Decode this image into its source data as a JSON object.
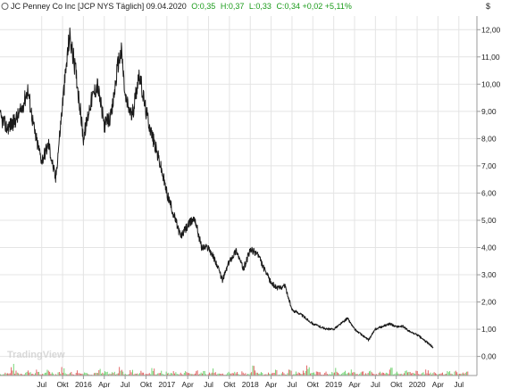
{
  "header": {
    "icon_name": "info-icon",
    "title": "JC Penney Co Inc [JCP NYS Täglich] 09.04.2020",
    "open": "O:0,35",
    "high": "H:0,37",
    "low": "L:0,33",
    "close_change": "C:0,34 +0,02 +5,11%",
    "currency": "$"
  },
  "watermark": {
    "text": "TradingView"
  },
  "colors": {
    "price_line": "#1a1a1a",
    "volume_up": "#6fd26f",
    "volume_down": "#e06060",
    "header_green": "#1a9b1a",
    "grid": "#e4e4e4",
    "axis": "#9a9a9a"
  },
  "chart_data": {
    "type": "line",
    "title": "JC Penney Co Inc [JCP NYS Täglich] 09.04.2020",
    "ylabel": "$",
    "ylim": [
      -0.7,
      12.5
    ],
    "y_ticks": [
      "12,00",
      "11,00",
      "10,00",
      "9,00",
      "8,00",
      "7,00",
      "6,00",
      "5,00",
      "4,00",
      "3,00",
      "2,00",
      "1,00",
      "0,00"
    ],
    "x_ticks": [
      "Jul",
      "Okt",
      "2016",
      "Apr",
      "Jul",
      "Okt",
      "2017",
      "Apr",
      "Jul",
      "Okt",
      "2018",
      "Apr",
      "Jul",
      "Okt",
      "2019",
      "Apr",
      "Jul",
      "Okt",
      "2020",
      "Apr",
      "Jul"
    ],
    "x_tick_months": [
      6,
      9,
      12,
      15,
      18,
      21,
      24,
      27,
      30,
      33,
      36,
      39,
      42,
      45,
      48,
      51,
      54,
      57,
      60,
      63,
      66
    ],
    "grid": true,
    "series": [
      {
        "name": "JCP",
        "x_month": [
          0,
          1,
          2,
          3,
          4,
          5,
          6,
          7,
          8,
          9,
          10,
          11,
          12,
          13,
          14,
          15,
          16,
          17,
          17.5,
          18,
          19,
          20,
          21,
          22,
          23,
          24,
          25,
          26,
          27,
          28,
          29,
          30,
          31,
          32,
          33,
          34,
          35,
          36,
          37,
          38,
          39,
          40,
          41,
          42,
          43,
          44,
          45,
          46,
          47,
          48,
          49,
          50,
          51,
          52,
          53,
          54,
          55,
          56,
          57,
          58,
          59,
          60,
          61,
          62,
          62.3
        ],
        "price": [
          8.8,
          8.4,
          8.6,
          9.0,
          9.8,
          8.2,
          7.2,
          7.8,
          6.5,
          9.3,
          11.8,
          10.3,
          8.0,
          9.3,
          10.0,
          8.5,
          8.8,
          10.8,
          11.2,
          9.5,
          8.8,
          10.4,
          9.0,
          8.0,
          7.1,
          6.0,
          5.2,
          4.4,
          4.8,
          5.1,
          4.0,
          4.0,
          3.5,
          2.8,
          3.5,
          3.9,
          3.2,
          3.9,
          3.8,
          3.2,
          2.7,
          2.5,
          2.6,
          1.7,
          1.6,
          1.4,
          1.2,
          1.1,
          1.0,
          1.0,
          1.2,
          1.4,
          1.0,
          0.8,
          0.6,
          1.0,
          1.1,
          1.2,
          1.1,
          1.1,
          0.9,
          0.8,
          0.6,
          0.4,
          0.34
        ]
      },
      {
        "name": "Volume",
        "values": [
          0.02,
          0.04,
          0.03,
          0.12,
          0.05,
          0.03,
          0.02,
          0.08,
          0.04,
          0.03,
          0.06,
          0.02,
          0.03,
          0.07,
          0.04,
          0.02,
          0.05,
          0.09,
          0.03,
          0.04,
          0.02,
          0.06,
          0.03,
          0.05,
          0.03,
          0.02,
          0.04,
          0.07,
          0.03,
          0.05,
          0.02,
          0.04,
          0.03,
          0.11,
          0.04,
          0.02,
          0.06,
          0.03,
          0.04,
          0.05,
          0.02,
          0.03,
          0.08,
          0.03,
          0.05,
          0.02,
          0.04,
          0.03,
          0.06,
          0.02,
          0.03,
          0.05,
          0.04,
          0.02,
          0.07,
          0.03,
          0.05,
          0.02,
          0.04,
          0.09,
          0.03,
          0.05,
          0.02,
          0.04,
          0.03,
          0.06,
          0.02,
          0.05,
          0.03,
          0.04,
          0.1,
          0.03,
          0.05,
          0.02,
          0.04,
          0.03,
          0.07,
          0.02,
          0.05,
          0.03,
          0.06,
          0.02,
          0.04,
          0.03,
          0.05,
          0.12,
          0.03,
          0.04,
          0.06,
          0.02,
          0.05,
          0.03,
          0.04,
          0.08,
          0.02,
          0.05,
          0.03,
          0.06,
          0.04,
          0.02,
          0.05,
          0.03,
          0.07,
          0.04,
          0.02,
          0.05,
          0.03,
          0.04,
          0.09,
          0.03,
          0.05,
          0.02,
          0.06,
          0.04,
          0.03,
          0.05,
          0.02,
          0.04,
          0.06,
          0.03,
          0.05,
          0.02,
          0.04,
          0.03,
          0.07,
          0.02,
          0.05,
          0.04,
          0.03,
          0.06
        ]
      }
    ]
  }
}
